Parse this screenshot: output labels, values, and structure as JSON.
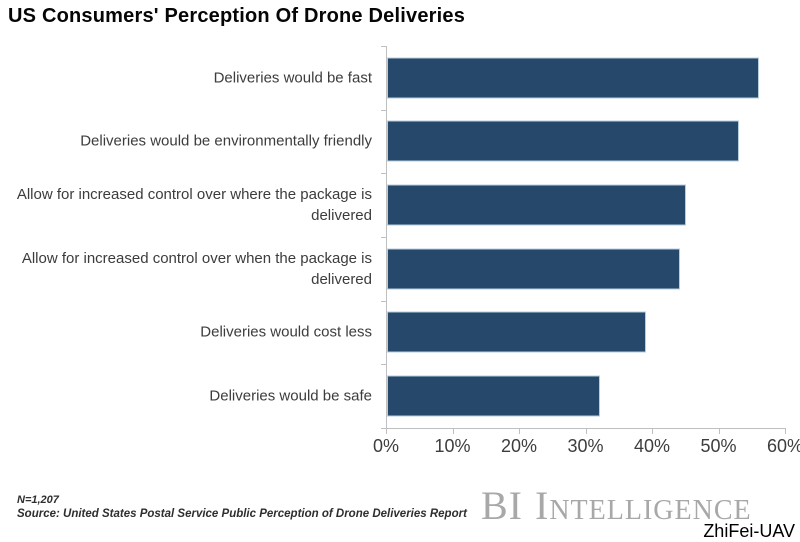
{
  "chart_data": {
    "type": "bar",
    "orientation": "horizontal",
    "title": "US Consumers' Perception Of Drone Deliveries",
    "categories": [
      "Deliveries would be fast",
      "Deliveries would be environmentally friendly",
      "Allow for increased control over where the package is delivered",
      "Allow for increased control over when the package is delivered",
      "Deliveries would cost less",
      "Deliveries would be safe"
    ],
    "values": [
      56,
      53,
      45,
      44,
      39,
      32
    ],
    "unit": "%",
    "xlabel": "",
    "ylabel": "",
    "xlim": [
      0,
      60
    ],
    "x_ticks": [
      "0%",
      "10%",
      "20%",
      "30%",
      "40%",
      "50%",
      "60%"
    ],
    "grid": false,
    "legend": false,
    "bar_color": "#25486B",
    "bar_border_color": "#B7CEDD",
    "axis_color": "#BFBFBF"
  },
  "footer": {
    "sample_size": "N=1,207",
    "source": "Source: United States Postal Service Public Perception of Drone Deliveries Report"
  },
  "branding": {
    "logo_primary": "BI",
    "logo_secondary": "Intelligence",
    "logo_color": "#A8A8A8"
  },
  "watermark": {
    "text": "ZhiFei-UAV"
  }
}
